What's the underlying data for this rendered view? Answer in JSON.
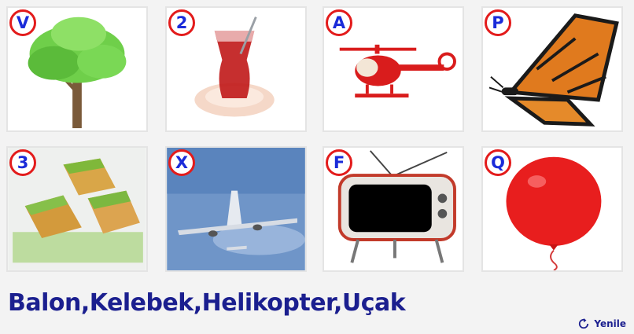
{
  "tiles": [
    {
      "letter": "V",
      "icon": "tree-icon"
    },
    {
      "letter": "2",
      "icon": "tea-glass-icon"
    },
    {
      "letter": "A",
      "icon": "helicopter-icon"
    },
    {
      "letter": "P",
      "icon": "butterfly-icon"
    },
    {
      "letter": "3",
      "icon": "baklava-icon"
    },
    {
      "letter": "X",
      "icon": "airplane-icon"
    },
    {
      "letter": "F",
      "icon": "television-icon"
    },
    {
      "letter": "Q",
      "icon": "balloon-icon"
    }
  ],
  "answer_text": "Balon,Kelebek,Helikopter,Uçak",
  "refresh_label": "Yenile",
  "colors": {
    "badge_border": "#e31b1b",
    "badge_text": "#1a2bd9",
    "answer_text": "#1b1f8f",
    "tile_border": "#e4e4e4",
    "page_background": "#f3f3f3"
  }
}
